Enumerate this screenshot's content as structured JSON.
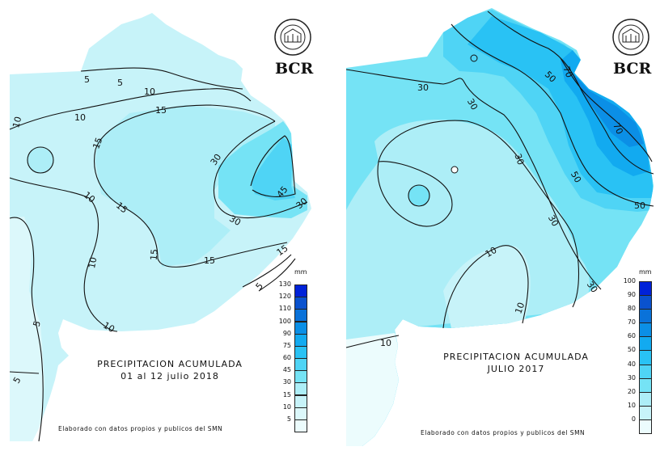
{
  "palette": {
    "c0": "#ecfcfd",
    "c5": "#dcf8fb",
    "c10": "#c7f3f9",
    "c15": "#adeef7",
    "c30": "#75e3f5",
    "c40": "#4fd4f5",
    "c50": "#29c2f4",
    "c60": "#12aaf0",
    "c70": "#0b8fe6",
    "c80": "#0a72d9",
    "c90": "#0a52ce",
    "c100": "#0022d8"
  },
  "left_panel": {
    "brand": "BCR",
    "title_line1": "PRECIPITACION ACUMULADA",
    "title_line2": "01  al  12  julio  2018",
    "credit": "Elaborado  con  datos  propios  y  publicos  del  SMN",
    "legend": {
      "unit": "mm",
      "ticks": [
        "130",
        "120",
        "110",
        "100",
        "90",
        "75",
        "60",
        "45",
        "30",
        "15",
        "10",
        "5"
      ],
      "colors": [
        "#0022d8",
        "#0a52ce",
        "#0a72d9",
        "#0b8fe6",
        "#12aaf0",
        "#29c2f4",
        "#4fd4f5",
        "#75e3f5",
        "#adeef7",
        "#c7f3f9",
        "#dcf8fb",
        "#ecfcfd"
      ]
    },
    "contour_labels": [
      "5",
      "5",
      "10",
      "10",
      "10",
      "15",
      "15",
      "15",
      "15",
      "15",
      "30",
      "30",
      "30",
      "45",
      "10",
      "10",
      "10",
      "5",
      "5",
      "5",
      "15"
    ]
  },
  "right_panel": {
    "brand": "BCR",
    "title_line1": "PRECIPITACION ACUMULADA",
    "title_line2": "JULIO 2017",
    "credit": "Elaborado  con  datos  propios  y  publicos  del  SMN",
    "legend": {
      "unit": "mm",
      "ticks": [
        "100",
        "90",
        "80",
        "70",
        "60",
        "50",
        "40",
        "30",
        "20",
        "10",
        "0"
      ],
      "colors": [
        "#0022d8",
        "#0a52ce",
        "#0a72d9",
        "#0b8fe6",
        "#12aaf0",
        "#29c2f4",
        "#4fd4f5",
        "#75e3f5",
        "#adeef7",
        "#c7f3f9",
        "#ecfcfd"
      ]
    },
    "contour_labels": [
      "30",
      "30",
      "30",
      "30",
      "30",
      "50",
      "50",
      "50",
      "70",
      "70",
      "10",
      "10",
      "10"
    ]
  }
}
